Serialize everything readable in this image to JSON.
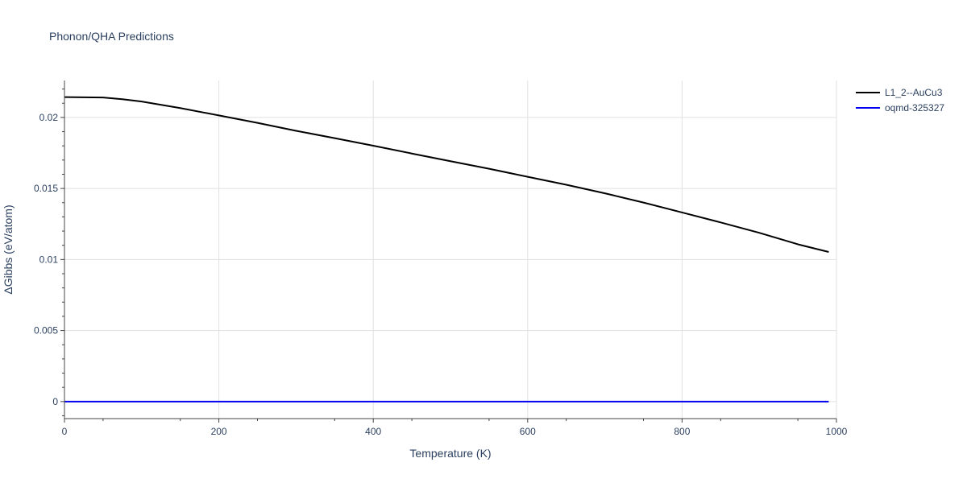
{
  "chart_data": {
    "type": "line",
    "title": "Phonon/QHA Predictions",
    "xlabel": "Temperature (K)",
    "ylabel": "ΔGibbs (eV/atom)",
    "xlim": [
      0,
      1000
    ],
    "ylim": [
      -0.0012,
      0.0226
    ],
    "x_ticks": [
      0,
      200,
      400,
      600,
      800,
      1000
    ],
    "x_tick_labels": [
      "0",
      "200",
      "400",
      "600",
      "800",
      "1000"
    ],
    "y_ticks": [
      0,
      0.005,
      0.01,
      0.015,
      0.02
    ],
    "y_tick_labels": [
      "0",
      "0.005",
      "0.01",
      "0.015",
      "0.02"
    ],
    "grid": true,
    "legend_position": "top-right",
    "series": [
      {
        "name": "L1_2--AuCu3",
        "color": "#000000",
        "x": [
          0,
          25,
          50,
          75,
          100,
          150,
          200,
          250,
          300,
          350,
          400,
          450,
          500,
          550,
          600,
          650,
          700,
          750,
          800,
          850,
          900,
          950,
          990
        ],
        "y": [
          0.02143,
          0.02142,
          0.0214,
          0.02128,
          0.02112,
          0.02066,
          0.02014,
          0.01962,
          0.01906,
          0.01854,
          0.01801,
          0.01746,
          0.01692,
          0.01639,
          0.01582,
          0.01526,
          0.01466,
          0.01401,
          0.01331,
          0.01261,
          0.01188,
          0.01107,
          0.01053
        ]
      },
      {
        "name": "oqmd-325327",
        "color": "#0000ee",
        "x": [
          0,
          990
        ],
        "y": [
          0,
          0
        ]
      }
    ]
  }
}
